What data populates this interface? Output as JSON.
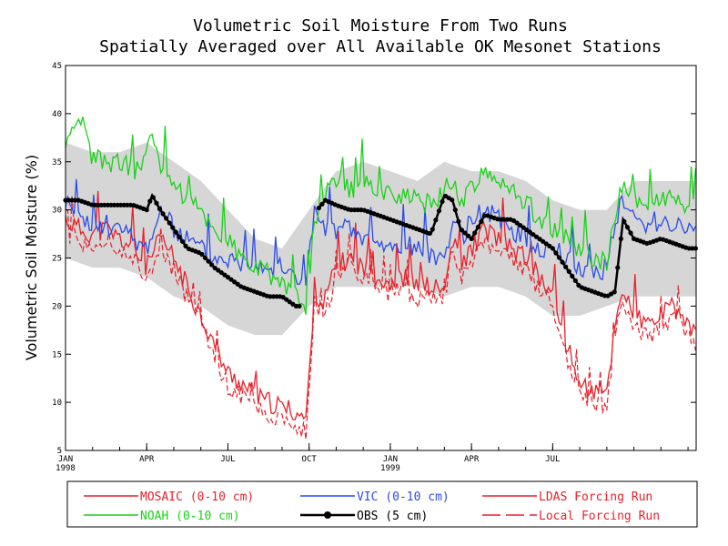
{
  "chart_data": {
    "type": "line",
    "title_line1": "Volumetric Soil Moisture From Two Runs",
    "title_line2": "Spatially Averaged over All Available OK Mesonet Stations",
    "ylabel": "Volumetric Soil Moisture (%)",
    "xlabel": "",
    "ylim": [
      5,
      45
    ],
    "yticks": [
      5,
      10,
      15,
      20,
      25,
      30,
      35,
      40,
      45
    ],
    "xlim_months": [
      0,
      23.3
    ],
    "xticks": [
      {
        "m": 0,
        "label": "JAN",
        "sub": "1998"
      },
      {
        "m": 3,
        "label": "APR",
        "sub": ""
      },
      {
        "m": 6,
        "label": "JUL",
        "sub": ""
      },
      {
        "m": 9,
        "label": "OCT",
        "sub": ""
      },
      {
        "m": 12,
        "label": "JAN",
        "sub": "1999"
      },
      {
        "m": 15,
        "label": "APR",
        "sub": ""
      },
      {
        "m": 18,
        "label": "JUL",
        "sub": ""
      }
    ],
    "obs_gap": [
      8.7,
      9.3
    ],
    "grid": false,
    "colors": {
      "mosaic": "#e8202a",
      "vic": "#2a4be8",
      "noah": "#19d119",
      "obs": "#000000",
      "spread": "#d6d6d6"
    },
    "series": [
      {
        "name": "MOSAIC (0-10 cm)",
        "key": "mosaic",
        "points": [
          [
            0,
            29
          ],
          [
            0.5,
            28
          ],
          [
            1,
            27.5
          ],
          [
            1.5,
            28
          ],
          [
            2,
            27
          ],
          [
            2.5,
            26
          ],
          [
            3,
            24
          ],
          [
            3.5,
            27
          ],
          [
            4,
            25
          ],
          [
            4.5,
            22
          ],
          [
            5,
            19
          ],
          [
            5.5,
            16
          ],
          [
            6,
            13
          ],
          [
            6.5,
            12
          ],
          [
            7,
            10.5
          ],
          [
            7.5,
            10
          ],
          [
            8,
            9.5
          ],
          [
            8.5,
            9
          ],
          [
            8.9,
            8.2
          ],
          [
            9.2,
            22
          ],
          [
            9.5,
            20
          ],
          [
            10,
            24
          ],
          [
            10.5,
            25
          ],
          [
            11,
            24
          ],
          [
            11.5,
            23
          ],
          [
            12,
            22.5
          ],
          [
            12.5,
            23
          ],
          [
            13,
            22
          ],
          [
            13.5,
            22
          ],
          [
            14,
            21.5
          ],
          [
            14.3,
            27
          ],
          [
            14.6,
            24
          ],
          [
            15,
            26
          ],
          [
            15.5,
            28
          ],
          [
            16,
            27
          ],
          [
            16.5,
            26
          ],
          [
            17,
            25
          ],
          [
            17.5,
            23
          ],
          [
            18,
            21
          ],
          [
            18.5,
            16
          ],
          [
            19,
            12
          ],
          [
            19.5,
            11
          ],
          [
            20,
            11
          ],
          [
            20.3,
            18
          ],
          [
            20.6,
            22
          ],
          [
            21,
            19
          ],
          [
            21.5,
            18
          ],
          [
            22,
            19
          ],
          [
            22.5,
            20
          ],
          [
            23,
            18
          ],
          [
            23.3,
            17
          ]
        ]
      },
      {
        "name": "VIC (0-10 cm)",
        "key": "vic",
        "points": [
          [
            0,
            31
          ],
          [
            0.5,
            29
          ],
          [
            1,
            28
          ],
          [
            1.5,
            28.5
          ],
          [
            2,
            28
          ],
          [
            2.5,
            27
          ],
          [
            3,
            26
          ],
          [
            3.5,
            30
          ],
          [
            4,
            28
          ],
          [
            4.5,
            27
          ],
          [
            5,
            26
          ],
          [
            5.5,
            25
          ],
          [
            6,
            25
          ],
          [
            6.5,
            24.5
          ],
          [
            7,
            25
          ],
          [
            7.5,
            24
          ],
          [
            8,
            24
          ],
          [
            8.5,
            23
          ],
          [
            8.9,
            22.5
          ],
          [
            9.2,
            30
          ],
          [
            9.5,
            28
          ],
          [
            10,
            28
          ],
          [
            10.5,
            28
          ],
          [
            11,
            27
          ],
          [
            11.5,
            26.5
          ],
          [
            12,
            26
          ],
          [
            12.5,
            26.5
          ],
          [
            13,
            26
          ],
          [
            13.5,
            25.5
          ],
          [
            14,
            25
          ],
          [
            14.3,
            29
          ],
          [
            14.6,
            27
          ],
          [
            15,
            29
          ],
          [
            15.5,
            30
          ],
          [
            16,
            29
          ],
          [
            16.5,
            28
          ],
          [
            17,
            27
          ],
          [
            17.5,
            26
          ],
          [
            18,
            26
          ],
          [
            18.5,
            25
          ],
          [
            19,
            24
          ],
          [
            19.5,
            23.5
          ],
          [
            20,
            24
          ],
          [
            20.3,
            29
          ],
          [
            20.6,
            31
          ],
          [
            21,
            29
          ],
          [
            21.5,
            28.5
          ],
          [
            22,
            29
          ],
          [
            22.5,
            28.5
          ],
          [
            23,
            28
          ],
          [
            23.3,
            28
          ]
        ]
      },
      {
        "name": "NOAH (0-10 cm)",
        "key": "noah",
        "points": [
          [
            0,
            36
          ],
          [
            0.3,
            38
          ],
          [
            0.6,
            39
          ],
          [
            1,
            35.5
          ],
          [
            1.5,
            35
          ],
          [
            2,
            35
          ],
          [
            2.5,
            34
          ],
          [
            2.8,
            35
          ],
          [
            3,
            36
          ],
          [
            3.2,
            38
          ],
          [
            3.5,
            35
          ],
          [
            4,
            33
          ],
          [
            4.5,
            31
          ],
          [
            5,
            30
          ],
          [
            5.5,
            28
          ],
          [
            6,
            27
          ],
          [
            6.5,
            25
          ],
          [
            7,
            24
          ],
          [
            7.5,
            23.5
          ],
          [
            8,
            22.5
          ],
          [
            8.5,
            21
          ],
          [
            8.9,
            19.5
          ],
          [
            9.2,
            29
          ],
          [
            9.5,
            31
          ],
          [
            10,
            33
          ],
          [
            10.5,
            32
          ],
          [
            11,
            33
          ],
          [
            11.5,
            32
          ],
          [
            12,
            32
          ],
          [
            12.5,
            31.5
          ],
          [
            13,
            31
          ],
          [
            13.5,
            30.5
          ],
          [
            14,
            32
          ],
          [
            14.3,
            33
          ],
          [
            14.6,
            31
          ],
          [
            15,
            32
          ],
          [
            15.5,
            34
          ],
          [
            16,
            33
          ],
          [
            16.5,
            32
          ],
          [
            17,
            31
          ],
          [
            17.5,
            29
          ],
          [
            18,
            28
          ],
          [
            18.5,
            27
          ],
          [
            19,
            26
          ],
          [
            19.5,
            25
          ],
          [
            20,
            24.5
          ],
          [
            20.3,
            29
          ],
          [
            20.6,
            33
          ],
          [
            21,
            31
          ],
          [
            21.5,
            31
          ],
          [
            22,
            31
          ],
          [
            22.5,
            31
          ],
          [
            23,
            30.5
          ],
          [
            23.3,
            30
          ]
        ]
      },
      {
        "name": "OBS (5 cm)",
        "key": "obs",
        "points": [
          [
            0,
            31
          ],
          [
            0.5,
            31
          ],
          [
            1,
            30.5
          ],
          [
            1.5,
            30.5
          ],
          [
            2,
            30.5
          ],
          [
            2.5,
            30.5
          ],
          [
            3,
            30
          ],
          [
            3.2,
            31.5
          ],
          [
            3.5,
            30
          ],
          [
            4,
            28
          ],
          [
            4.5,
            26
          ],
          [
            5,
            25.5
          ],
          [
            5.5,
            24
          ],
          [
            6,
            23
          ],
          [
            6.5,
            22
          ],
          [
            7,
            21.5
          ],
          [
            7.5,
            21
          ],
          [
            8,
            21
          ],
          [
            8.5,
            20
          ],
          [
            8.7,
            20
          ],
          [
            9.3,
            30
          ],
          [
            9.6,
            31
          ],
          [
            10,
            30.5
          ],
          [
            10.5,
            30
          ],
          [
            11,
            30
          ],
          [
            11.5,
            29.5
          ],
          [
            12,
            29
          ],
          [
            12.5,
            28.5
          ],
          [
            13,
            28
          ],
          [
            13.5,
            27.5
          ],
          [
            14,
            31.5
          ],
          [
            14.3,
            31
          ],
          [
            14.6,
            28
          ],
          [
            15,
            27
          ],
          [
            15.5,
            29.5
          ],
          [
            16,
            29
          ],
          [
            16.5,
            29
          ],
          [
            17,
            28
          ],
          [
            17.5,
            27
          ],
          [
            18,
            26
          ],
          [
            18.5,
            24
          ],
          [
            19,
            22
          ],
          [
            19.5,
            21.5
          ],
          [
            20,
            21
          ],
          [
            20.3,
            21.5
          ],
          [
            20.6,
            29
          ],
          [
            21,
            27
          ],
          [
            21.5,
            26.5
          ],
          [
            22,
            27
          ],
          [
            22.5,
            26.5
          ],
          [
            23,
            26
          ],
          [
            23.3,
            26
          ]
        ]
      }
    ],
    "spread": {
      "upper": [
        [
          0,
          37
        ],
        [
          1,
          36
        ],
        [
          2,
          36
        ],
        [
          3,
          37
        ],
        [
          4,
          35
        ],
        [
          5,
          33
        ],
        [
          6,
          30
        ],
        [
          7,
          27
        ],
        [
          8,
          26
        ],
        [
          9,
          30
        ],
        [
          10,
          34
        ],
        [
          11,
          35
        ],
        [
          12,
          34
        ],
        [
          13,
          33
        ],
        [
          14,
          35
        ],
        [
          15,
          34
        ],
        [
          16,
          34
        ],
        [
          17,
          33
        ],
        [
          18,
          31
        ],
        [
          19,
          30
        ],
        [
          20,
          30
        ],
        [
          21,
          33
        ],
        [
          22,
          33
        ],
        [
          23,
          33
        ],
        [
          23.3,
          33
        ]
      ],
      "lower": [
        [
          0,
          25
        ],
        [
          1,
          24
        ],
        [
          2,
          24
        ],
        [
          3,
          23
        ],
        [
          4,
          21
        ],
        [
          5,
          20
        ],
        [
          6,
          18
        ],
        [
          7,
          17
        ],
        [
          8,
          17
        ],
        [
          9,
          20
        ],
        [
          10,
          22
        ],
        [
          11,
          22
        ],
        [
          12,
          22
        ],
        [
          13,
          22
        ],
        [
          14,
          21
        ],
        [
          15,
          22
        ],
        [
          16,
          22
        ],
        [
          17,
          21
        ],
        [
          18,
          19
        ],
        [
          19,
          19
        ],
        [
          20,
          20
        ],
        [
          21,
          21
        ],
        [
          22,
          21
        ],
        [
          23,
          21
        ],
        [
          23.3,
          21
        ]
      ]
    },
    "legend": [
      {
        "label": "MOSAIC (0-10 cm)",
        "key": "mosaic",
        "style": "solid"
      },
      {
        "label": "VIC (0-10 cm)",
        "key": "vic",
        "style": "solid"
      },
      {
        "label": "LDAS Forcing Run",
        "key": "mosaic",
        "style": "solid"
      },
      {
        "label": "NOAH (0-10 cm)",
        "key": "noah",
        "style": "solid"
      },
      {
        "label": "OBS (5 cm)",
        "key": "obs",
        "style": "dots"
      },
      {
        "label": "Local Forcing Run",
        "key": "mosaic",
        "style": "dashed"
      }
    ]
  }
}
